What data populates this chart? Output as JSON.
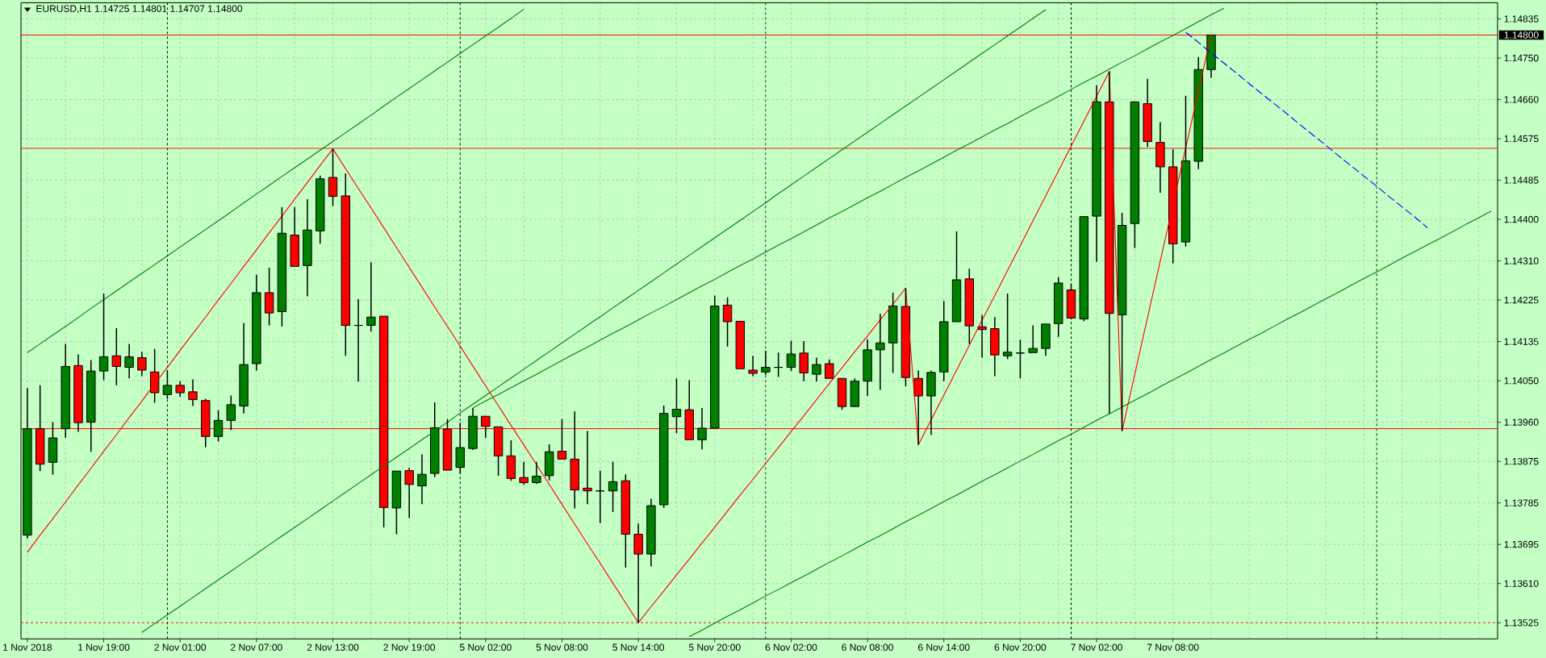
{
  "chart_data": {
    "type": "candlestick",
    "title": "EURUSD,H1 1.14725 1.14801 1.14707 1.14800",
    "categories": [
      "1 Nov 2018",
      null,
      null,
      null,
      null,
      null,
      "1 Nov 19:00",
      null,
      null,
      null,
      null,
      null,
      "2 Nov 01:00",
      null,
      null,
      null,
      null,
      null,
      "2 Nov 07:00",
      null,
      null,
      null,
      null,
      null,
      "2 Nov 13:00",
      null,
      null,
      null,
      null,
      null,
      "2 Nov 19:00",
      null,
      null,
      null,
      null,
      null,
      "5 Nov 02:00",
      null,
      null,
      null,
      null,
      null,
      "5 Nov 08:00",
      null,
      null,
      null,
      null,
      null,
      "5 Nov 14:00",
      null,
      null,
      null,
      null,
      null,
      "5 Nov 20:00",
      null,
      null,
      null,
      null,
      null,
      "6 Nov 02:00",
      null,
      null,
      null,
      null,
      null,
      "6 Nov 08:00",
      null,
      null,
      null,
      null,
      null,
      "6 Nov 14:00",
      null,
      null,
      null,
      null,
      null,
      "6 Nov 20:00",
      null,
      null,
      null,
      null,
      null,
      "7 Nov 02:00",
      null,
      null,
      null,
      null,
      null,
      "7 Nov 08:00",
      null,
      null,
      null,
      null,
      null,
      null,
      null,
      null,
      null,
      null,
      null,
      null,
      null,
      null,
      null,
      null,
      null,
      null,
      null,
      null,
      null,
      null,
      null,
      null,
      null
    ],
    "ohlc": [
      [
        1.13715,
        1.14034,
        1.13708,
        1.13946
      ],
      [
        1.13946,
        1.1404,
        1.13854,
        1.13869
      ],
      [
        1.13873,
        1.1396,
        1.13846,
        1.13926
      ],
      [
        1.13946,
        1.1413,
        1.13926,
        1.14081
      ],
      [
        1.14083,
        1.14107,
        1.13939,
        1.13959
      ],
      [
        1.1396,
        1.14095,
        1.13896,
        1.14071
      ],
      [
        1.14071,
        1.14239,
        1.14051,
        1.14102
      ],
      [
        1.14104,
        1.14164,
        1.1404,
        1.14081
      ],
      [
        1.14079,
        1.1413,
        1.14055,
        1.14102
      ],
      [
        1.141,
        1.14113,
        1.1406,
        1.14073
      ],
      [
        1.14069,
        1.14119,
        1.14002,
        1.14024
      ],
      [
        1.1402,
        1.14073,
        1.14011,
        1.1404
      ],
      [
        1.1404,
        1.14049,
        1.14015,
        1.14024
      ],
      [
        1.14026,
        1.14053,
        1.13995,
        1.14009
      ],
      [
        1.14007,
        1.14011,
        1.13906,
        1.13929
      ],
      [
        1.13929,
        1.13986,
        1.13918,
        1.13964
      ],
      [
        1.13964,
        1.14018,
        1.13943,
        1.13998
      ],
      [
        1.13995,
        1.14175,
        1.13979,
        1.14085
      ],
      [
        1.14087,
        1.1428,
        1.14072,
        1.14241
      ],
      [
        1.14241,
        1.14295,
        1.1417,
        1.14197
      ],
      [
        1.142,
        1.14427,
        1.14168,
        1.1437
      ],
      [
        1.14366,
        1.14427,
        1.14296,
        1.14298
      ],
      [
        1.143,
        1.14444,
        1.14233,
        1.14377
      ],
      [
        1.14375,
        1.14495,
        1.14347,
        1.14488
      ],
      [
        1.14491,
        1.14553,
        1.14429,
        1.1445
      ],
      [
        1.14451,
        1.145,
        1.14104,
        1.1417
      ],
      [
        1.1417,
        1.14227,
        1.14048,
        1.1417
      ],
      [
        1.1417,
        1.14307,
        1.14157,
        1.14188
      ],
      [
        1.1419,
        1.1419,
        1.13732,
        1.13775
      ],
      [
        1.13774,
        1.13855,
        1.13717,
        1.13854
      ],
      [
        1.13855,
        1.13861,
        1.13752,
        1.13825
      ],
      [
        1.13822,
        1.1389,
        1.13782,
        1.13847
      ],
      [
        1.13849,
        1.14003,
        1.13841,
        1.13948
      ],
      [
        1.13945,
        1.13967,
        1.13855,
        1.13856
      ],
      [
        1.13862,
        1.13959,
        1.13849,
        1.13905
      ],
      [
        1.13903,
        1.13991,
        1.139,
        1.13973
      ],
      [
        1.13973,
        1.13975,
        1.13926,
        1.13951
      ],
      [
        1.1395,
        1.13951,
        1.13844,
        1.13887
      ],
      [
        1.13887,
        1.13921,
        1.13833,
        1.13838
      ],
      [
        1.1384,
        1.13874,
        1.13824,
        1.13829
      ],
      [
        1.13829,
        1.13874,
        1.13826,
        1.13843
      ],
      [
        1.13844,
        1.13912,
        1.13834,
        1.13896
      ],
      [
        1.13897,
        1.13967,
        1.13878,
        1.1388
      ],
      [
        1.1388,
        1.13984,
        1.13773,
        1.13813
      ],
      [
        1.13817,
        1.13941,
        1.13782,
        1.13811
      ],
      [
        1.13811,
        1.13855,
        1.13741,
        1.13811
      ],
      [
        1.13811,
        1.13874,
        1.13765,
        1.13831
      ],
      [
        1.13833,
        1.13847,
        1.13645,
        1.13717
      ],
      [
        1.13717,
        1.1374,
        1.13525,
        1.13674
      ],
      [
        1.13674,
        1.13794,
        1.13647,
        1.13779
      ],
      [
        1.13781,
        1.13996,
        1.13774,
        1.13979
      ],
      [
        1.13972,
        1.14055,
        1.13936,
        1.13988
      ],
      [
        1.13987,
        1.14051,
        1.1392,
        1.13922
      ],
      [
        1.13922,
        1.13991,
        1.13901,
        1.13947
      ],
      [
        1.13947,
        1.14235,
        1.13945,
        1.14212
      ],
      [
        1.14214,
        1.14231,
        1.14124,
        1.14178
      ],
      [
        1.14179,
        1.14181,
        1.14074,
        1.14076
      ],
      [
        1.14073,
        1.14104,
        1.1406,
        1.14066
      ],
      [
        1.14069,
        1.14115,
        1.14063,
        1.14079
      ],
      [
        1.14079,
        1.14111,
        1.14058,
        1.14079
      ],
      [
        1.14079,
        1.14137,
        1.14071,
        1.14108
      ],
      [
        1.1411,
        1.14136,
        1.14049,
        1.14067
      ],
      [
        1.14064,
        1.141,
        1.14048,
        1.14085
      ],
      [
        1.14087,
        1.14096,
        1.14053,
        1.14055
      ],
      [
        1.14055,
        1.14057,
        1.13987,
        1.13994
      ],
      [
        1.13994,
        1.14055,
        1.13994,
        1.14049
      ],
      [
        1.14049,
        1.1414,
        1.14017,
        1.14117
      ],
      [
        1.14117,
        1.14195,
        1.1403,
        1.14132
      ],
      [
        1.14132,
        1.14241,
        1.14067,
        1.14212
      ],
      [
        1.14211,
        1.14251,
        1.14038,
        1.14057
      ],
      [
        1.14055,
        1.14072,
        1.13911,
        1.14017
      ],
      [
        1.14017,
        1.14072,
        1.13932,
        1.14068
      ],
      [
        1.14069,
        1.14223,
        1.14049,
        1.14178
      ],
      [
        1.14178,
        1.14374,
        1.14176,
        1.14269
      ],
      [
        1.14271,
        1.14293,
        1.1413,
        1.14169
      ],
      [
        1.14167,
        1.14193,
        1.141,
        1.14161
      ],
      [
        1.14163,
        1.14188,
        1.1406,
        1.14106
      ],
      [
        1.14104,
        1.14239,
        1.14097,
        1.14112
      ],
      [
        1.1411,
        1.14139,
        1.14055,
        1.1411
      ],
      [
        1.14111,
        1.1417,
        1.1411,
        1.1412
      ],
      [
        1.1412,
        1.14174,
        1.14104,
        1.14173
      ],
      [
        1.14174,
        1.14275,
        1.14145,
        1.14262
      ],
      [
        1.14247,
        1.1426,
        1.14184,
        1.14186
      ],
      [
        1.14184,
        1.14408,
        1.14179,
        1.14406
      ],
      [
        1.14407,
        1.14691,
        1.14308,
        1.14655
      ],
      [
        1.14655,
        1.14721,
        1.13979,
        1.14196
      ],
      [
        1.14193,
        1.14414,
        1.13941,
        1.14387
      ],
      [
        1.14391,
        1.14655,
        1.14338,
        1.14655
      ],
      [
        1.14651,
        1.14705,
        1.14557,
        1.14569
      ],
      [
        1.14567,
        1.14611,
        1.14458,
        1.14514
      ],
      [
        1.14514,
        1.14552,
        1.14305,
        1.14347
      ],
      [
        1.14351,
        1.14668,
        1.14341,
        1.14527
      ],
      [
        1.14526,
        1.14752,
        1.14509,
        1.14725
      ],
      [
        1.14725,
        1.14801,
        1.14707,
        1.148
      ],
      null,
      null,
      null,
      null,
      null,
      null,
      null,
      null,
      null,
      null,
      null,
      null,
      null,
      null,
      null,
      null,
      null,
      null,
      null,
      null,
      null,
      null
    ],
    "colors": [
      "#008000",
      "#ff0000",
      "#008000",
      "#008000",
      "#ff0000",
      "#008000",
      "#008000",
      "#ff0000",
      "#008000",
      "#ff0000",
      "#ff0000",
      "#008000",
      "#ff0000",
      "#ff0000",
      "#ff0000",
      "#008000",
      "#008000",
      "#008000",
      "#008000",
      "#ff0000",
      "#008000",
      "#ff0000",
      "#008000",
      "#008000",
      "#ff0000",
      "#ff0000",
      "#000000",
      "#008000",
      "#ff0000",
      "#008000",
      "#ff0000",
      "#008000",
      "#008000",
      "#ff0000",
      "#008000",
      "#008000",
      "#ff0000",
      "#ff0000",
      "#ff0000",
      "#ff0000",
      "#008000",
      "#008000",
      "#ff0000",
      "#ff0000",
      "#ff0000",
      "#000000",
      "#008000",
      "#ff0000",
      "#ff0000",
      "#008000",
      "#008000",
      "#008000",
      "#ff0000",
      "#008000",
      "#008000",
      "#ff0000",
      "#ff0000",
      "#ff0000",
      "#008000",
      "#000000",
      "#008000",
      "#ff0000",
      "#008000",
      "#ff0000",
      "#ff0000",
      "#008000",
      "#008000",
      "#008000",
      "#008000",
      "#ff0000",
      "#ff0000",
      "#008000",
      "#008000",
      "#008000",
      "#ff0000",
      "#ff0000",
      "#ff0000",
      "#008000",
      "#000000",
      "#008000",
      "#008000",
      "#008000",
      "#ff0000",
      "#008000",
      "#008000",
      "#ff0000",
      "#008000",
      "#008000",
      "#ff0000",
      "#ff0000",
      "#ff0000",
      "#008000",
      "#008000",
      "#008000",
      null,
      null,
      null,
      null,
      null,
      null,
      null,
      null,
      null,
      null,
      null,
      null,
      null,
      null,
      null,
      null,
      null,
      null,
      null,
      null,
      null,
      null
    ],
    "series": [
      {
        "type": "line",
        "color": "#ff0000",
        "values": [
          1.13678,
          1.13715,
          1.13751,
          1.13787,
          1.13824,
          1.1386,
          1.13897,
          1.13933,
          1.1397,
          1.14006,
          1.14043,
          1.14079,
          1.14116,
          1.14152,
          1.14188,
          1.14225,
          1.14261,
          1.14298,
          1.14334,
          1.14371,
          1.14407,
          1.14444,
          1.1448,
          1.14517,
          1.14553,
          1.1451,
          1.14467,
          1.14425,
          1.14382,
          1.14339,
          1.14296,
          1.14253,
          1.1421,
          1.14168,
          1.14125,
          1.14082,
          1.14039,
          1.13996,
          1.13953,
          1.13911,
          1.13868,
          1.13825,
          1.13782,
          1.13739,
          1.13696,
          1.13654,
          1.13611,
          1.13568,
          1.13525,
          1.1356,
          1.13594,
          1.13629,
          1.13663,
          1.13698,
          1.13732,
          1.13767,
          1.13802,
          1.13836,
          1.13871,
          1.13905,
          1.1394,
          1.13974,
          1.14009,
          1.14044,
          1.14078,
          1.14113,
          1.14147,
          1.14182,
          1.14216,
          1.14251,
          1.13911,
          1.13965,
          1.14019,
          1.14073,
          1.14127,
          1.14181,
          1.14235,
          1.14289,
          1.14343,
          1.14397,
          1.14451,
          1.14505,
          1.14559,
          1.14613,
          1.14667,
          1.14721,
          1.13941,
          1.14064,
          1.14187,
          1.1431,
          1.14432,
          1.14555,
          1.14678,
          1.14801,
          null,
          null,
          null,
          null,
          null,
          null,
          null,
          null,
          null,
          null,
          null,
          null,
          null,
          null,
          null,
          null,
          null,
          null,
          null,
          null,
          null,
          null
        ]
      },
      {
        "type": "line",
        "color": "#008000",
        "values": [
          1.14111,
          1.1413,
          1.14149,
          1.14168,
          1.14187,
          1.14207,
          1.14226,
          1.14245,
          1.14264,
          1.14283,
          1.14302,
          1.14321,
          1.1434,
          1.14359,
          1.14378,
          1.14397,
          1.14416,
          1.14436,
          1.14455,
          1.14474,
          1.14493,
          1.14512,
          1.14531,
          1.1455,
          1.14569,
          1.14588,
          1.14607,
          1.14626,
          1.14646,
          1.14665,
          1.14684,
          1.14703,
          1.14722,
          1.14741,
          1.1476,
          1.14779,
          1.14798,
          1.14817,
          1.14836,
          1.14856,
          null,
          null,
          null,
          null,
          null,
          null,
          null,
          null,
          null,
          null,
          null,
          null,
          null,
          null,
          null,
          null,
          null,
          null,
          null,
          null,
          null,
          null,
          null,
          null,
          null,
          null,
          null,
          null,
          null,
          null,
          null,
          null,
          null,
          null,
          null,
          null,
          null,
          null,
          null,
          null,
          null,
          null,
          null,
          null,
          null,
          null,
          null,
          null,
          null,
          null,
          null,
          null,
          null,
          null,
          null,
          null,
          null,
          null,
          null,
          null,
          null,
          null,
          null,
          null,
          null,
          null,
          null,
          null,
          null,
          null,
          null,
          null,
          null,
          null,
          null,
          null
        ]
      },
      {
        "type": "line",
        "color": "#008000",
        "values": [
          null,
          null,
          null,
          null,
          null,
          null,
          null,
          null,
          null,
          1.13504,
          1.13523,
          1.13542,
          1.13561,
          1.1358,
          1.13599,
          1.13618,
          1.13637,
          1.13656,
          1.13675,
          1.13694,
          1.13713,
          1.13732,
          1.13751,
          1.1377,
          1.13789,
          1.13808,
          1.13827,
          1.13846,
          1.13865,
          1.13884,
          1.13903,
          1.13922,
          1.13941,
          1.1396,
          1.1398,
          1.13999,
          1.14018,
          1.14037,
          1.14056,
          1.14075,
          1.14094,
          1.14113,
          1.14132,
          1.14151,
          1.1417,
          1.14189,
          1.14208,
          1.14227,
          1.14246,
          1.14265,
          1.14284,
          1.14303,
          1.14322,
          1.14341,
          1.1436,
          1.14379,
          1.14398,
          1.14417,
          1.14436,
          1.14456,
          1.14475,
          1.14494,
          1.14513,
          1.14532,
          1.14551,
          1.1457,
          1.14589,
          1.14608,
          1.14627,
          1.14646,
          1.14665,
          1.14684,
          1.14703,
          1.14722,
          1.14741,
          1.1476,
          1.14779,
          1.14798,
          1.14817,
          1.14836,
          1.14855,
          null,
          null,
          null,
          null,
          null,
          null,
          null,
          null,
          null,
          null,
          null,
          null,
          null,
          null,
          null,
          null,
          null,
          null,
          null,
          null,
          null,
          null,
          null,
          null,
          null,
          null,
          null,
          null,
          null,
          null,
          null,
          null,
          null,
          null,
          null
        ]
      },
      {
        "type": "line",
        "color": "#008000",
        "values": [
          null,
          null,
          null,
          null,
          null,
          null,
          null,
          null,
          null,
          null,
          null,
          null,
          null,
          null,
          null,
          null,
          null,
          null,
          null,
          null,
          null,
          null,
          null,
          null,
          null,
          null,
          null,
          null,
          null,
          null,
          null,
          null,
          null,
          null,
          null,
          1.13991,
          1.14006,
          1.1402,
          1.14035,
          1.1405,
          1.14064,
          1.14079,
          1.14094,
          1.14109,
          1.14123,
          1.14138,
          1.14153,
          1.14167,
          1.14182,
          1.14197,
          1.14211,
          1.14226,
          1.14241,
          1.14256,
          1.1427,
          1.14285,
          1.143,
          1.14314,
          1.14329,
          1.14344,
          1.14358,
          1.14373,
          1.14388,
          1.14403,
          1.14417,
          1.14432,
          1.14447,
          1.14461,
          1.14476,
          1.14491,
          1.14505,
          1.1452,
          1.14535,
          1.1455,
          1.14564,
          1.14579,
          1.14594,
          1.14608,
          1.14623,
          1.14638,
          1.14652,
          1.14667,
          1.14682,
          1.14697,
          1.14711,
          1.14726,
          1.14741,
          1.14755,
          1.1477,
          1.14785,
          1.14799,
          1.14814,
          1.14829,
          1.14844,
          1.14858,
          null,
          null,
          null,
          null,
          null,
          null,
          null,
          null,
          null,
          null,
          null,
          null,
          null,
          null,
          null,
          null,
          null,
          null,
          null,
          null,
          null
        ]
      },
      {
        "type": "line",
        "color": "#008000",
        "values": [
          null,
          null,
          null,
          null,
          null,
          null,
          null,
          null,
          null,
          null,
          null,
          null,
          null,
          null,
          null,
          null,
          null,
          null,
          null,
          null,
          null,
          null,
          null,
          null,
          null,
          null,
          null,
          null,
          null,
          null,
          null,
          null,
          null,
          null,
          null,
          null,
          null,
          null,
          null,
          null,
          null,
          null,
          null,
          null,
          null,
          null,
          null,
          null,
          null,
          null,
          null,
          null,
          1.13495,
          1.13509,
          1.13524,
          1.13539,
          1.13553,
          1.13568,
          1.13583,
          1.13597,
          1.13612,
          1.13626,
          1.13641,
          1.13656,
          1.1367,
          1.13685,
          1.137,
          1.13714,
          1.13729,
          1.13744,
          1.13758,
          1.13773,
          1.13788,
          1.13802,
          1.13817,
          1.13832,
          1.13846,
          1.13861,
          1.13876,
          1.1389,
          1.13905,
          1.1392,
          1.13934,
          1.13949,
          1.13964,
          1.13978,
          1.13993,
          1.14008,
          1.14022,
          1.14037,
          1.14052,
          1.14066,
          1.14081,
          1.14096,
          1.1411,
          1.14125,
          1.1414,
          1.14154,
          1.14169,
          1.14184,
          1.14198,
          1.14213,
          1.14228,
          1.14242,
          1.14257,
          1.14272,
          1.14286,
          1.14301,
          1.14316,
          1.1433,
          1.14345,
          1.14359,
          1.14374,
          1.14389,
          1.14403,
          1.14418
        ]
      },
      {
        "type": "line",
        "color": "#0000ff",
        "line_style": "dashed",
        "values": [
          null,
          null,
          null,
          null,
          null,
          null,
          null,
          null,
          null,
          null,
          null,
          null,
          null,
          null,
          null,
          null,
          null,
          null,
          null,
          null,
          null,
          null,
          null,
          null,
          null,
          null,
          null,
          null,
          null,
          null,
          null,
          null,
          null,
          null,
          null,
          null,
          null,
          null,
          null,
          null,
          null,
          null,
          null,
          null,
          null,
          null,
          null,
          null,
          null,
          null,
          null,
          null,
          null,
          null,
          null,
          null,
          null,
          null,
          null,
          null,
          null,
          null,
          null,
          null,
          null,
          null,
          null,
          null,
          null,
          null,
          null,
          null,
          null,
          null,
          null,
          null,
          null,
          null,
          null,
          null,
          null,
          null,
          null,
          null,
          null,
          null,
          null,
          null,
          null,
          null,
          null,
          1.14806,
          1.14784,
          1.14761,
          1.14739,
          1.14717,
          1.14694,
          1.14672,
          1.1465,
          1.14628,
          1.14605,
          1.14583,
          1.14561,
          1.14538,
          1.14516,
          1.14494,
          1.14472,
          1.14449,
          1.14427,
          1.14405,
          1.14382,
          null,
          null,
          null,
          null,
          null
        ]
      }
    ],
    "ref_lines": [
      {
        "axis": "y",
        "value": 1.148,
        "label": "1.14800",
        "color": "#ff0000"
      },
      {
        "axis": "y",
        "value": 1.14554,
        "color": "#ff0000"
      },
      {
        "axis": "y",
        "value": 1.13946,
        "color": "#ff0000"
      },
      {
        "axis": "y",
        "value": 1.13525,
        "color": "#ff0000",
        "line_style": "dotted"
      }
    ],
    "ylim": [
      1.1349,
      1.1487
    ],
    "yticks": [
      {
        "value": 1.13525,
        "label": "1.13525"
      },
      {
        "value": 1.1361,
        "label": "1.13610"
      },
      {
        "value": 1.13695,
        "label": "1.13695"
      },
      {
        "value": 1.13785,
        "label": "1.13785"
      },
      {
        "value": 1.13875,
        "label": "1.13875"
      },
      {
        "value": 1.1396,
        "label": "1.13960"
      },
      {
        "value": 1.1405,
        "label": "1.14050"
      },
      {
        "value": 1.14135,
        "label": "1.14135"
      },
      {
        "value": 1.14225,
        "label": "1.14225"
      },
      {
        "value": 1.1431,
        "label": "1.14310"
      },
      {
        "value": 1.144,
        "label": "1.14400"
      },
      {
        "value": 1.14485,
        "label": "1.14485"
      },
      {
        "value": 1.14575,
        "label": "1.14575"
      },
      {
        "value": 1.1466,
        "label": "1.14660"
      },
      {
        "value": 1.1475,
        "label": "1.14750"
      },
      {
        "value": 1.14835,
        "label": "1.14835"
      }
    ],
    "grid": true
  }
}
